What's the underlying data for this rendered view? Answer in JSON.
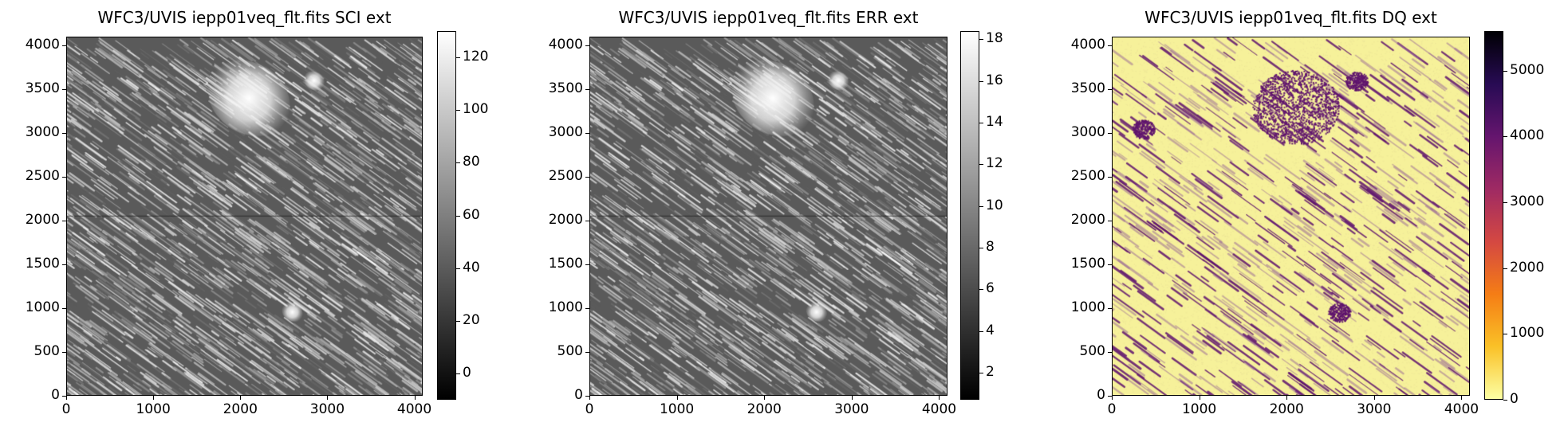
{
  "chart_data": [
    {
      "type": "heatmap",
      "title": "WFC3/UVIS iepp01veq_flt.fits SCI ext",
      "colormap": "gray",
      "xlim": [
        0,
        4096
      ],
      "ylim": [
        0,
        4096
      ],
      "xticks": [
        "0",
        "1000",
        "2000",
        "3000",
        "4000"
      ],
      "yticks": [
        "0",
        "500",
        "1000",
        "1500",
        "2000",
        "2500",
        "3000",
        "3500",
        "4000"
      ],
      "colorbar": {
        "range": [
          -10,
          130
        ],
        "ticks": [
          "0",
          "20",
          "40",
          "60",
          "80",
          "100",
          "120"
        ],
        "tick_values": [
          0,
          20,
          40,
          60,
          80,
          100,
          120
        ]
      },
      "features": [
        {
          "label": "bright extended source",
          "x": 2100,
          "y": 3400,
          "value": 130
        },
        {
          "label": "compact source",
          "x": 2600,
          "y": 950,
          "value": 125
        },
        {
          "label": "compact source",
          "x": 2850,
          "y": 3600,
          "value": 110
        },
        {
          "label": "chip gap",
          "y": 2050
        }
      ]
    },
    {
      "type": "heatmap",
      "title": "WFC3/UVIS iepp01veq_flt.fits ERR ext",
      "colormap": "gray",
      "xlim": [
        0,
        4096
      ],
      "ylim": [
        0,
        4096
      ],
      "xticks": [
        "0",
        "1000",
        "2000",
        "3000",
        "4000"
      ],
      "yticks": [
        "0",
        "500",
        "1000",
        "1500",
        "2000",
        "2500",
        "3000",
        "3500",
        "4000"
      ],
      "colorbar": {
        "range": [
          0.7,
          18.4
        ],
        "ticks": [
          "2",
          "4",
          "6",
          "8",
          "10",
          "12",
          "14",
          "16",
          "18"
        ],
        "tick_values": [
          2,
          4,
          6,
          8,
          10,
          12,
          14,
          16,
          18
        ]
      },
      "features": [
        {
          "label": "bright extended source",
          "x": 2100,
          "y": 3400,
          "value": 17
        },
        {
          "label": "compact source",
          "x": 2600,
          "y": 950,
          "value": 17
        },
        {
          "label": "compact source",
          "x": 2850,
          "y": 3600,
          "value": 15
        },
        {
          "label": "chip gap",
          "y": 2050
        }
      ]
    },
    {
      "type": "heatmap",
      "title": "WFC3/UVIS iepp01veq_flt.fits DQ ext",
      "colormap": "inferno_r",
      "xlim": [
        0,
        4096
      ],
      "ylim": [
        0,
        4096
      ],
      "xticks": [
        "0",
        "1000",
        "2000",
        "3000",
        "4000"
      ],
      "yticks": [
        "0",
        "500",
        "1000",
        "1500",
        "2000",
        "2500",
        "3000",
        "3500",
        "4000"
      ],
      "colorbar": {
        "range": [
          0,
          5600
        ],
        "ticks": [
          "0",
          "1000",
          "2000",
          "3000",
          "4000",
          "5000"
        ],
        "tick_values": [
          0,
          1000,
          2000,
          3000,
          4000,
          5000
        ]
      },
      "features": [
        {
          "label": "flagged extended source",
          "x": 2100,
          "y": 3300,
          "value": 4800
        },
        {
          "label": "flagged compact source",
          "x": 2600,
          "y": 950,
          "value": 4800
        },
        {
          "label": "flagged compact source",
          "x": 2800,
          "y": 3600,
          "value": 4800
        },
        {
          "label": "flagged source",
          "x": 350,
          "y": 3050,
          "value": 4800
        }
      ]
    }
  ]
}
